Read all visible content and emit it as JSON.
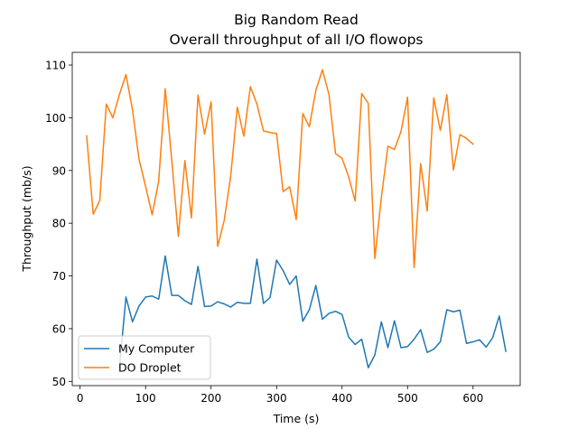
{
  "chart_data": {
    "type": "line",
    "title": "Big Random Read",
    "subtitle": "Overall throughput of all I/O flowops",
    "xlabel": "Time (s)",
    "ylabel": "Throughput (mb/s)",
    "xlim": [
      -12,
      672
    ],
    "ylim": [
      49.2,
      112.4
    ],
    "xticks": [
      0,
      100,
      200,
      300,
      400,
      500,
      600
    ],
    "yticks": [
      50,
      60,
      70,
      80,
      90,
      100,
      110
    ],
    "grid": false,
    "legend_position": "lower left",
    "series": [
      {
        "name": "My Computer",
        "color": "#1f77b4",
        "x": [
          60,
          70,
          80,
          90,
          100,
          110,
          120,
          130,
          140,
          150,
          160,
          170,
          180,
          190,
          200,
          210,
          220,
          230,
          240,
          250,
          260,
          270,
          280,
          290,
          300,
          310,
          320,
          330,
          340,
          350,
          360,
          370,
          380,
          390,
          400,
          410,
          420,
          430,
          440,
          450,
          460,
          470,
          480,
          490,
          500,
          510,
          520,
          530,
          540,
          550,
          560,
          570,
          580,
          590,
          600,
          610,
          620,
          630,
          640,
          650
        ],
        "values": [
          52.5,
          66.0,
          61.3,
          64.3,
          66.0,
          66.2,
          65.6,
          73.8,
          66.3,
          66.3,
          65.3,
          64.6,
          71.8,
          64.2,
          64.3,
          65.1,
          64.7,
          64.1,
          65.0,
          64.8,
          64.8,
          73.2,
          64.8,
          65.9,
          73.0,
          71.0,
          68.4,
          70.0,
          61.4,
          63.6,
          68.2,
          61.8,
          62.9,
          63.3,
          62.7,
          58.4,
          57.0,
          58.0,
          52.6,
          55.0,
          61.3,
          56.4,
          61.5,
          56.4,
          56.6,
          58.0,
          59.8,
          55.5,
          56.1,
          57.5,
          63.6,
          63.2,
          63.5,
          57.2,
          57.5,
          57.9,
          56.5,
          58.3,
          62.4,
          55.7
        ]
      },
      {
        "name": "DO Droplet",
        "color": "#ff7f0e",
        "x": [
          10,
          20,
          30,
          40,
          50,
          60,
          70,
          80,
          90,
          100,
          110,
          120,
          130,
          140,
          150,
          160,
          170,
          180,
          190,
          200,
          210,
          220,
          230,
          240,
          250,
          260,
          270,
          280,
          290,
          300,
          310,
          320,
          330,
          340,
          350,
          360,
          370,
          380,
          390,
          400,
          410,
          420,
          430,
          440,
          450,
          460,
          470,
          480,
          490,
          500,
          510,
          520,
          530,
          540,
          550,
          560,
          570,
          580,
          590,
          600
        ],
        "values": [
          96.6,
          81.7,
          84.3,
          102.6,
          100.0,
          104.4,
          108.2,
          101.5,
          92.1,
          87.0,
          81.6,
          88.0,
          105.5,
          91.9,
          77.5,
          91.9,
          81.0,
          104.3,
          96.9,
          103.0,
          75.6,
          80.5,
          89.0,
          102.0,
          96.5,
          105.9,
          102.6,
          97.5,
          97.2,
          97.0,
          86.0,
          86.9,
          80.7,
          100.8,
          98.3,
          105.2,
          109.1,
          104.4,
          93.2,
          92.3,
          88.8,
          84.2,
          104.6,
          102.7,
          73.3,
          84.9,
          94.6,
          94.0,
          97.4,
          103.9,
          71.6,
          91.3,
          82.3,
          103.8,
          97.6,
          104.4,
          90.1,
          96.8,
          96.1,
          95.0
        ]
      }
    ]
  }
}
